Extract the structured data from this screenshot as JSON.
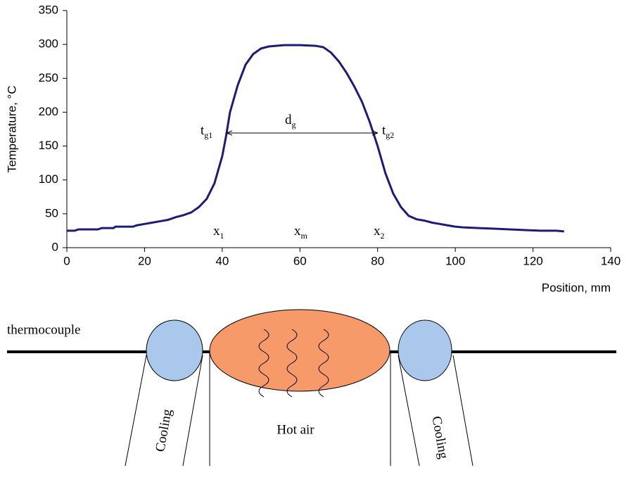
{
  "chart_data": {
    "type": "line",
    "xlabel": "Position, mm",
    "ylabel": "Temperature, °C",
    "xlim": [
      0,
      140
    ],
    "xticks": [
      0,
      20,
      40,
      60,
      80,
      100,
      120,
      140
    ],
    "ylim": [
      0,
      350
    ],
    "yticks": [
      0,
      50,
      100,
      150,
      200,
      250,
      300,
      350
    ],
    "grid": false,
    "series": [
      {
        "color": "#1c1c78",
        "x": [
          0,
          2,
          3,
          8,
          9,
          12,
          12.5,
          17,
          18,
          20,
          22,
          24,
          26,
          28,
          30,
          32,
          34,
          36,
          38,
          40,
          41,
          42,
          44,
          46,
          48,
          50,
          52,
          56,
          60,
          64,
          66,
          68,
          70,
          72,
          74,
          76,
          78,
          80,
          82,
          84,
          86,
          88,
          90,
          92,
          94,
          96,
          98,
          100,
          102,
          106,
          110,
          114,
          118,
          122,
          126,
          128
        ],
        "values": [
          25,
          25,
          27,
          27,
          29,
          29,
          31,
          31,
          33,
          35,
          37,
          39,
          41,
          45,
          48,
          52,
          60,
          72,
          95,
          135,
          165,
          200,
          240,
          270,
          286,
          294,
          297,
          299,
          299,
          298,
          296,
          288,
          275,
          258,
          238,
          215,
          185,
          150,
          110,
          80,
          60,
          47,
          42,
          40,
          37,
          35,
          33,
          31,
          30,
          29,
          28,
          27,
          26,
          25,
          25,
          24
        ]
      }
    ],
    "annotations": [
      {
        "text": "t",
        "sub": "g1"
      },
      {
        "text": "d",
        "sub": "g"
      },
      {
        "text": "t",
        "sub": "g2"
      },
      {
        "text": "x",
        "sub": "1"
      },
      {
        "text": "x",
        "sub": "m"
      },
      {
        "text": "x",
        "sub": "2"
      }
    ]
  },
  "diagram": {
    "labels": [
      "thermocouple",
      "Cooling",
      "Hot air",
      "Cooling"
    ]
  }
}
